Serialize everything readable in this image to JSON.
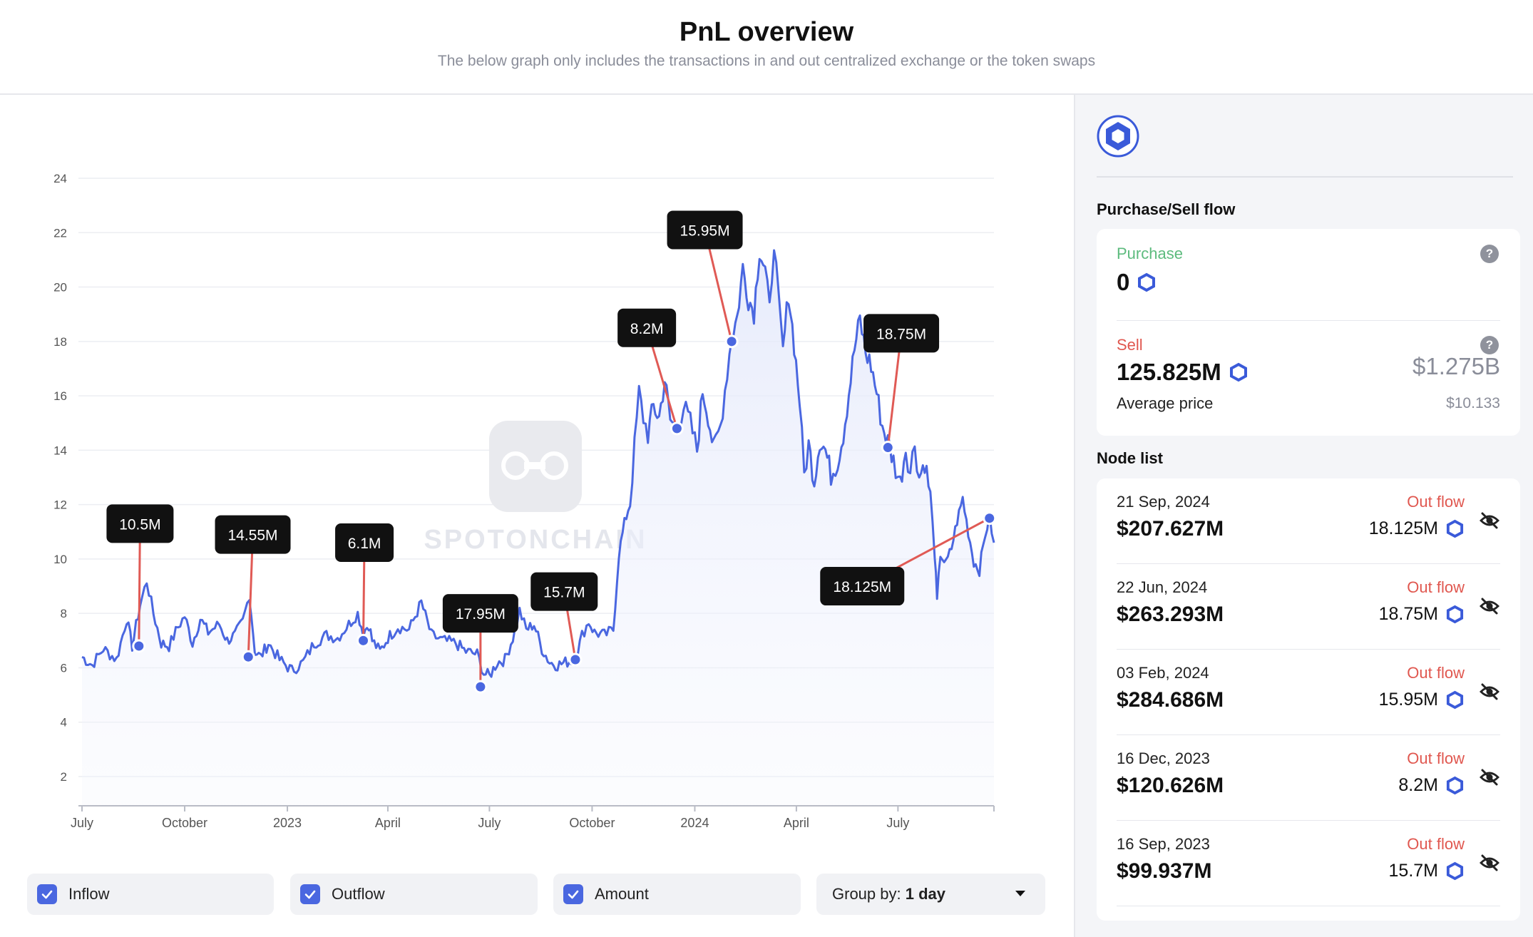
{
  "header": {
    "title": "PnL overview",
    "subtitle": "The below graph only includes the transactions in and out centralized exchange or the token swaps"
  },
  "watermark": "SPOTONCHAIN",
  "chart_data": {
    "type": "area",
    "title": "",
    "xlabel": "",
    "ylabel": "",
    "ylim": [
      1,
      24
    ],
    "y_ticks": [
      "2",
      "4",
      "6",
      "8",
      "10",
      "12",
      "14",
      "16",
      "18",
      "20",
      "22",
      "24"
    ],
    "x_range": [
      "2022-07-01",
      "2024-09-25"
    ],
    "x_ticks": [
      {
        "date": "2022-07-01",
        "label": "July"
      },
      {
        "date": "2022-10-01",
        "label": "October"
      },
      {
        "date": "2023-01-01",
        "label": "2023"
      },
      {
        "date": "2023-04-01",
        "label": "April"
      },
      {
        "date": "2023-07-01",
        "label": "July"
      },
      {
        "date": "2023-10-01",
        "label": "October"
      },
      {
        "date": "2024-01-01",
        "label": "2024"
      },
      {
        "date": "2024-04-01",
        "label": "April"
      },
      {
        "date": "2024-07-01",
        "label": "July"
      }
    ],
    "grid": true,
    "line_color": "#4a67e0",
    "series": [
      {
        "values": [
          [
            "2022-07-01",
            6.4
          ],
          [
            "2022-07-10",
            6.1
          ],
          [
            "2022-07-20",
            6.7
          ],
          [
            "2022-08-01",
            6.3
          ],
          [
            "2022-08-10",
            7.8
          ],
          [
            "2022-08-15",
            6.8
          ],
          [
            "2022-08-22",
            8.3
          ],
          [
            "2022-08-28",
            9.2
          ],
          [
            "2022-09-03",
            8.0
          ],
          [
            "2022-09-10",
            6.9
          ],
          [
            "2022-09-17",
            6.8
          ],
          [
            "2022-09-25",
            7.5
          ],
          [
            "2022-10-01",
            7.9
          ],
          [
            "2022-10-08",
            6.9
          ],
          [
            "2022-10-15",
            7.8
          ],
          [
            "2022-10-22",
            7.3
          ],
          [
            "2022-11-01",
            7.6
          ],
          [
            "2022-11-08",
            7.0
          ],
          [
            "2022-11-15",
            7.2
          ],
          [
            "2022-11-22",
            7.7
          ],
          [
            "2022-11-28",
            8.7
          ],
          [
            "2022-12-03",
            6.6
          ],
          [
            "2022-12-08",
            6.4
          ],
          [
            "2022-12-15",
            6.9
          ],
          [
            "2022-12-25",
            6.3
          ],
          [
            "2023-01-05",
            5.9
          ],
          [
            "2023-01-15",
            6.2
          ],
          [
            "2023-01-25",
            6.9
          ],
          [
            "2023-02-05",
            7.2
          ],
          [
            "2023-02-15",
            7.1
          ],
          [
            "2023-02-25",
            7.6
          ],
          [
            "2023-03-05",
            8.0
          ],
          [
            "2023-03-10",
            7.3
          ],
          [
            "2023-03-15",
            7.6
          ],
          [
            "2023-03-18",
            7.0
          ],
          [
            "2023-03-25",
            6.6
          ],
          [
            "2023-04-01",
            7.1
          ],
          [
            "2023-04-10",
            7.5
          ],
          [
            "2023-04-20",
            7.4
          ],
          [
            "2023-05-01",
            8.4
          ],
          [
            "2023-05-10",
            7.2
          ],
          [
            "2023-05-20",
            7.0
          ],
          [
            "2023-06-01",
            6.9
          ],
          [
            "2023-06-10",
            6.6
          ],
          [
            "2023-06-20",
            6.5
          ],
          [
            "2023-06-26",
            5.8
          ],
          [
            "2023-07-01",
            5.7
          ],
          [
            "2023-07-08",
            6.2
          ],
          [
            "2023-07-15",
            6.3
          ],
          [
            "2023-07-22",
            7.1
          ],
          [
            "2023-07-28",
            8.1
          ],
          [
            "2023-08-03",
            7.4
          ],
          [
            "2023-08-10",
            7.6
          ],
          [
            "2023-08-17",
            6.7
          ],
          [
            "2023-08-24",
            6.2
          ],
          [
            "2023-08-31",
            6.1
          ],
          [
            "2023-09-07",
            6.2
          ],
          [
            "2023-09-16",
            6.3
          ],
          [
            "2023-09-22",
            7.2
          ],
          [
            "2023-09-28",
            7.7
          ],
          [
            "2023-10-03",
            7.3
          ],
          [
            "2023-10-12",
            7.2
          ],
          [
            "2023-10-20",
            7.4
          ],
          [
            "2023-10-25",
            10.2
          ],
          [
            "2023-10-30",
            11.3
          ],
          [
            "2023-11-04",
            12.1
          ],
          [
            "2023-11-08",
            14.1
          ],
          [
            "2023-11-12",
            16.1
          ],
          [
            "2023-11-16",
            15.2
          ],
          [
            "2023-11-20",
            14.6
          ],
          [
            "2023-11-25",
            15.6
          ],
          [
            "2023-11-30",
            15.2
          ],
          [
            "2023-12-05",
            16.6
          ],
          [
            "2023-12-10",
            15.1
          ],
          [
            "2023-12-16",
            14.8
          ],
          [
            "2023-12-22",
            15.6
          ],
          [
            "2023-12-28",
            15.0
          ],
          [
            "2024-01-03",
            14.0
          ],
          [
            "2024-01-08",
            16.2
          ],
          [
            "2024-01-13",
            15.3
          ],
          [
            "2024-01-18",
            14.0
          ],
          [
            "2024-01-24",
            14.9
          ],
          [
            "2024-01-30",
            16.9
          ],
          [
            "2024-02-03",
            18.2
          ],
          [
            "2024-02-08",
            18.9
          ],
          [
            "2024-02-13",
            20.7
          ],
          [
            "2024-02-18",
            19.6
          ],
          [
            "2024-02-23",
            19.1
          ],
          [
            "2024-02-28",
            21.4
          ],
          [
            "2024-03-04",
            20.6
          ],
          [
            "2024-03-08",
            19.1
          ],
          [
            "2024-03-12",
            21.8
          ],
          [
            "2024-03-16",
            19.4
          ],
          [
            "2024-03-20",
            17.6
          ],
          [
            "2024-03-25",
            19.8
          ],
          [
            "2024-03-30",
            17.9
          ],
          [
            "2024-04-04",
            15.8
          ],
          [
            "2024-04-08",
            13.1
          ],
          [
            "2024-04-12",
            14.2
          ],
          [
            "2024-04-17",
            12.9
          ],
          [
            "2024-04-22",
            14.4
          ],
          [
            "2024-04-27",
            14.0
          ],
          [
            "2024-05-02",
            13.1
          ],
          [
            "2024-05-08",
            13.6
          ],
          [
            "2024-05-13",
            14.6
          ],
          [
            "2024-05-18",
            16.1
          ],
          [
            "2024-05-23",
            17.7
          ],
          [
            "2024-05-28",
            18.8
          ],
          [
            "2024-06-02",
            17.6
          ],
          [
            "2024-06-07",
            17.1
          ],
          [
            "2024-06-12",
            16.1
          ],
          [
            "2024-06-17",
            14.9
          ],
          [
            "2024-06-22",
            14.3
          ],
          [
            "2024-06-27",
            13.6
          ],
          [
            "2024-07-03",
            12.8
          ],
          [
            "2024-07-08",
            14.1
          ],
          [
            "2024-07-12",
            13.2
          ],
          [
            "2024-07-16",
            14.3
          ],
          [
            "2024-07-20",
            13.0
          ],
          [
            "2024-07-25",
            13.6
          ],
          [
            "2024-07-30",
            12.3
          ],
          [
            "2024-08-03",
            10.2
          ],
          [
            "2024-08-05",
            8.4
          ],
          [
            "2024-08-08",
            10.2
          ],
          [
            "2024-08-13",
            9.8
          ],
          [
            "2024-08-18",
            10.4
          ],
          [
            "2024-08-23",
            11.4
          ],
          [
            "2024-08-28",
            12.2
          ],
          [
            "2024-09-02",
            11.0
          ],
          [
            "2024-09-07",
            9.9
          ],
          [
            "2024-09-12",
            9.6
          ],
          [
            "2024-09-17",
            10.9
          ],
          [
            "2024-09-21",
            11.5
          ],
          [
            "2024-09-25",
            10.6
          ]
        ]
      }
    ],
    "annotations": [
      {
        "label": "10.5M",
        "date": "2022-08-21",
        "y": 6.8,
        "box_date": "2022-08-22",
        "box_y": 11.3
      },
      {
        "label": "14.55M",
        "date": "2022-11-27",
        "y": 6.4,
        "box_date": "2022-12-01",
        "box_y": 10.9
      },
      {
        "label": "6.1M",
        "date": "2023-03-10",
        "y": 7.0,
        "box_date": "2023-03-11",
        "box_y": 10.6
      },
      {
        "label": "17.95M",
        "date": "2023-06-23",
        "y": 5.3,
        "box_date": "2023-06-23",
        "box_y": 8.0
      },
      {
        "label": "15.7M",
        "date": "2023-09-16",
        "y": 6.3,
        "box_date": "2023-09-06",
        "box_y": 8.8
      },
      {
        "label": "8.2M",
        "date": "2023-12-16",
        "y": 14.8,
        "box_date": "2023-11-19",
        "box_y": 18.5
      },
      {
        "label": "15.95M",
        "date": "2024-02-03",
        "y": 18.0,
        "box_date": "2024-01-10",
        "box_y": 22.1
      },
      {
        "label": "18.75M",
        "date": "2024-06-22",
        "y": 14.1,
        "box_date": "2024-07-04",
        "box_y": 18.3
      },
      {
        "label": "18.125M",
        "date": "2024-09-21",
        "y": 11.5,
        "box_date": "2024-05-30",
        "box_y": 9.0
      }
    ]
  },
  "controls": {
    "inflow_label": "Inflow",
    "outflow_label": "Outflow",
    "amount_label": "Amount",
    "group_by_prefix": "Group by:",
    "group_by_value": "1 day",
    "inflow_checked": true,
    "outflow_checked": true,
    "amount_checked": true
  },
  "sidebar": {
    "token_icon": "chainlink-hexagon-icon",
    "accent_color": "#3a5ad9",
    "flow_title": "Purchase/Sell flow",
    "purchase_label": "Purchase",
    "purchase_value": "0",
    "sell_label": "Sell",
    "sell_value": "125.825M",
    "sell_usd": "$1.275B",
    "avg_label": "Average price",
    "avg_value": "$10.133",
    "node_title": "Node list",
    "nodes": [
      {
        "date": "21 Sep, 2024",
        "usd": "$207.627M",
        "direction": "Out flow",
        "amount": "18.125M"
      },
      {
        "date": "22 Jun, 2024",
        "usd": "$263.293M",
        "direction": "Out flow",
        "amount": "18.75M"
      },
      {
        "date": "03 Feb, 2024",
        "usd": "$284.686M",
        "direction": "Out flow",
        "amount": "15.95M"
      },
      {
        "date": "16 Dec, 2023",
        "usd": "$120.626M",
        "direction": "Out flow",
        "amount": "8.2M"
      },
      {
        "date": "16 Sep, 2023",
        "usd": "$99.937M",
        "direction": "Out flow",
        "amount": "15.7M"
      }
    ]
  }
}
